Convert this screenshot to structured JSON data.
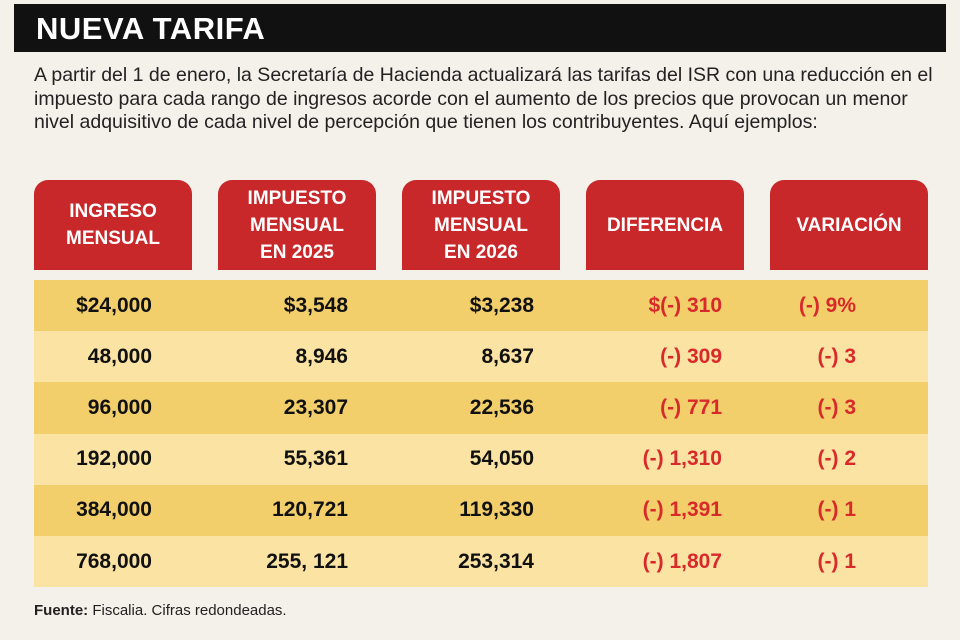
{
  "header": {
    "title": "NUEVA TARIFA"
  },
  "intro": "A partir del 1 de enero, la Secretaría de Hacienda actualizará las tarifas del ISR con una reducción en el impuesto para cada rango de ingresos acorde con el aumento de los precios que provocan un menor nivel adquisitivo de cada nivel de percepción que tienen los contribuyentes. Aquí ejemplos:",
  "table": {
    "headers": [
      "INGRESO MENSUAL",
      "IMPUESTO MENSUAL EN 2025",
      "IMPUESTO MENSUAL EN 2026",
      "DIFERENCIA",
      "VARIACIÓN"
    ],
    "rows": [
      [
        "$24,000",
        "$3,548",
        "$3,238",
        "$(-) 310",
        "(-) 9%"
      ],
      [
        "48,000",
        "8,946",
        "8,637",
        "(-) 309",
        "(-) 3"
      ],
      [
        "96,000",
        "23,307",
        "22,536",
        "(-) 771",
        "(-) 3"
      ],
      [
        "192,000",
        "55,361",
        "54,050",
        "(-) 1,310",
        "(-) 2"
      ],
      [
        "384,000",
        "120,721",
        "119,330",
        "(-) 1,391",
        "(-) 1"
      ],
      [
        "768,000",
        "255, 121",
        "253,314",
        "(-) 1,807",
        "(-) 1"
      ]
    ]
  },
  "footer": {
    "label": "Fuente:",
    "text": "Fiscalia. Cifras redondeadas."
  }
}
